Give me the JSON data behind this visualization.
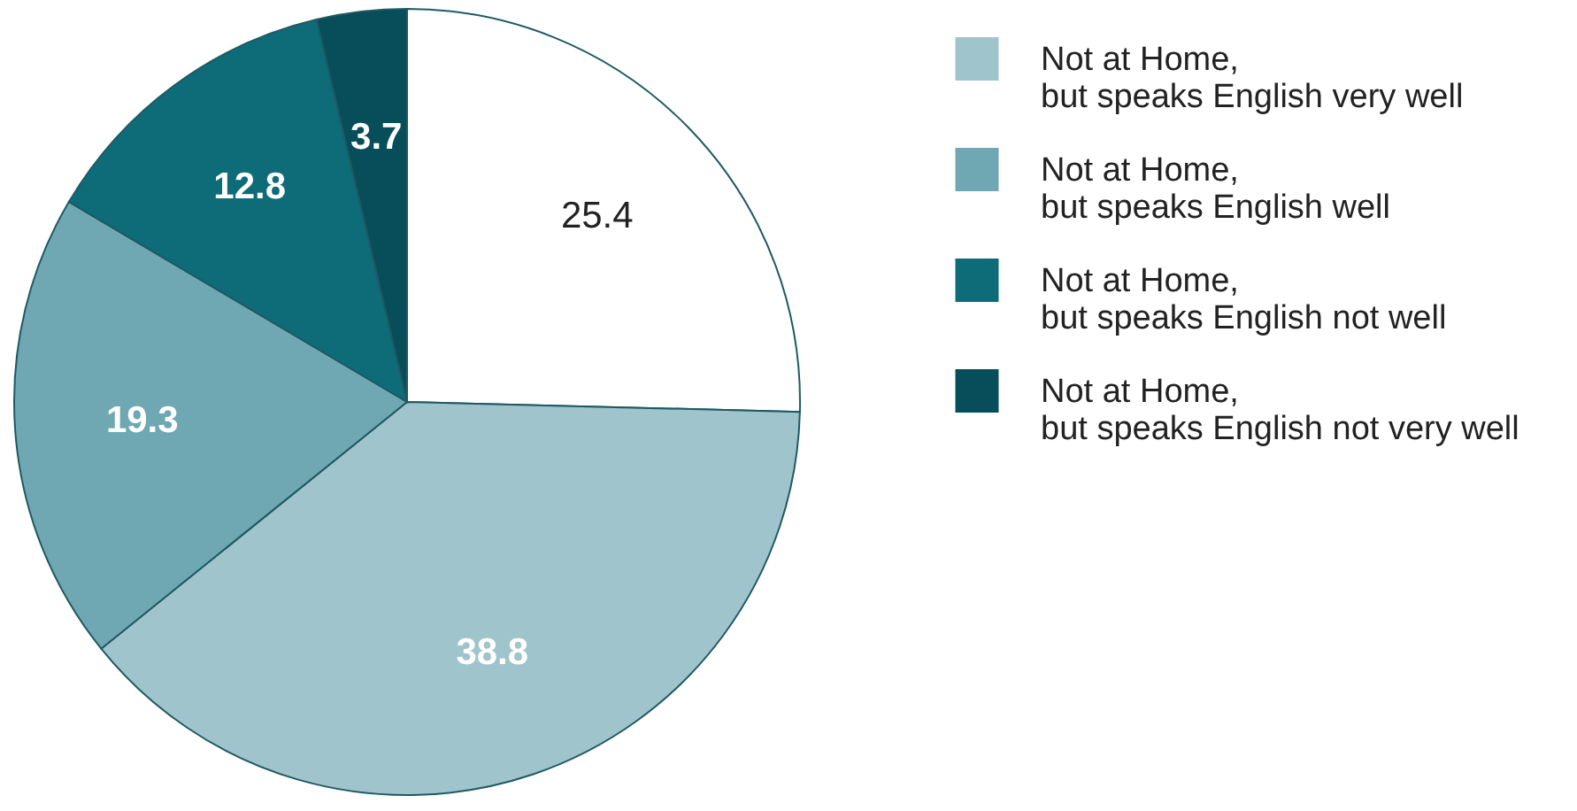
{
  "chart_data": {
    "type": "pie",
    "categories": [
      null,
      "Not at Home,\nbut speaks English very well",
      "Not at Home,\nbut speaks English well",
      "Not at Home,\nbut speaks English not well",
      "Not at Home,\nbut speaks English not very well"
    ],
    "values": [
      25.4,
      38.8,
      19.3,
      12.8,
      3.7
    ],
    "colors": [
      "#ffffff",
      "#a0c4cb",
      "#6fa8b3",
      "#0e6b78",
      "#084d5a"
    ],
    "data_labels": true,
    "legend": "right"
  }
}
